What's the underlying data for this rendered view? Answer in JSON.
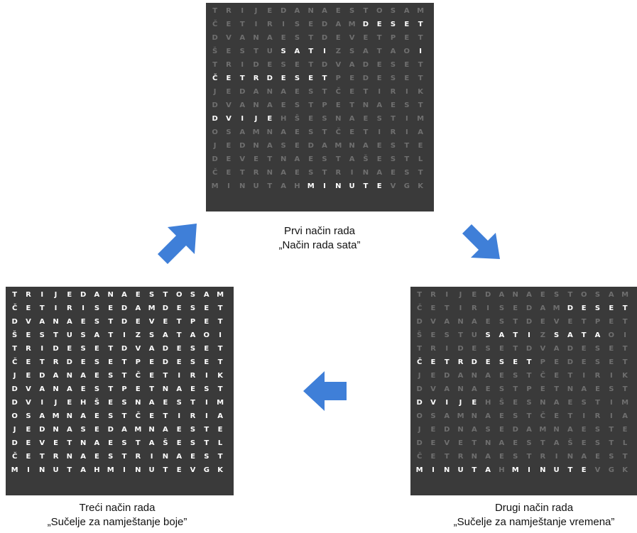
{
  "grid_rows": [
    "TRIJEDANAESTOSAM",
    "ČETIRISEDAMDESET",
    "DVANAESTDEVETPET",
    "ŠESTUSATIZSATAOI",
    "TRIDESETDVADESET",
    "ČETRDESETPEDESET",
    "JEDANAESTČETIRIK",
    "DVANAESTPETNAEST",
    "DVIJEHŠESNAESTIM",
    "OSAMNAESTČETIRIA",
    "JEDNASEDAMNAESTE",
    "DEVETNAESTAŠESTL",
    "ČETRNAESTRINAEST",
    "MINUTAHMINUTEVGK"
  ],
  "modes": [
    {
      "caption_line1": "Prvi način rada",
      "caption_line2": "„Način rada sata”",
      "highlight": [
        [
          1,
          11,
          15
        ],
        [
          3,
          5,
          8
        ],
        [
          3,
          15,
          15
        ],
        [
          5,
          0,
          8
        ],
        [
          8,
          0,
          4
        ],
        [
          13,
          7,
          12
        ]
      ]
    },
    {
      "caption_line1": "Drugi način rada",
      "caption_line2": "„Sučelje za namještanje vremena”",
      "highlight": [
        [
          1,
          11,
          15
        ],
        [
          3,
          5,
          8
        ],
        [
          3,
          10,
          13
        ],
        [
          5,
          0,
          8
        ],
        [
          8,
          0,
          4
        ],
        [
          13,
          0,
          5
        ],
        [
          13,
          7,
          12
        ]
      ]
    },
    {
      "caption_line1": "Treći način rada",
      "caption_line2": "„Sučelje za namještanje boje”",
      "highlight": "all"
    }
  ],
  "colors": {
    "panel": "#3a3a3a",
    "lit": "#ffffff",
    "dim": "#6f6f6f",
    "arrow": "#3f7fd8"
  }
}
